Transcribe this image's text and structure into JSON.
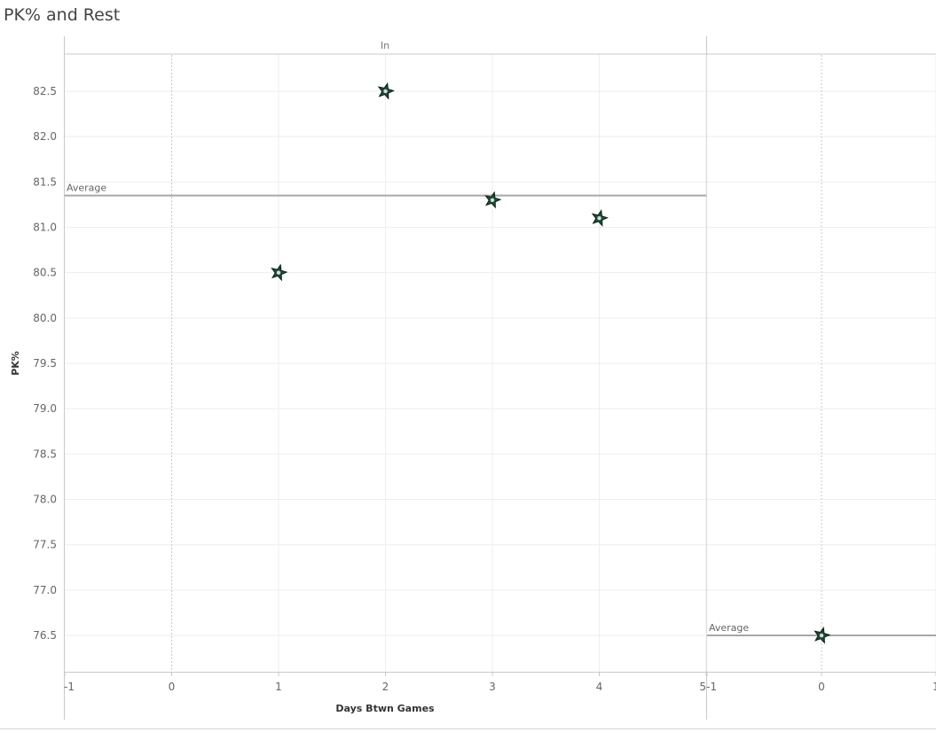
{
  "title": "PK% and Rest",
  "chart_data": {
    "type": "scatter",
    "panel_header": "In",
    "xlabel": "Days Btwn Games",
    "ylabel": "PK%",
    "ylim": [
      76.1,
      82.9
    ],
    "y_ticks": [
      "76.5",
      "77.0",
      "77.5",
      "78.0",
      "78.5",
      "79.0",
      "79.5",
      "80.0",
      "80.5",
      "81.0",
      "81.5",
      "82.0",
      "82.5"
    ],
    "panels": [
      {
        "x_ticks": [
          "-1",
          "0",
          "1",
          "2",
          "3",
          "4",
          "5"
        ],
        "xlim": [
          -1,
          5
        ],
        "points": [
          {
            "x": 1,
            "y": 80.5
          },
          {
            "x": 2,
            "y": 82.5
          },
          {
            "x": 3,
            "y": 81.3
          },
          {
            "x": 4,
            "y": 81.1
          }
        ],
        "average": {
          "label": "Average",
          "value": 81.35
        }
      },
      {
        "x_ticks": [
          "-1",
          "0",
          "1"
        ],
        "xlim": [
          -1,
          1
        ],
        "points": [
          {
            "x": 0,
            "y": 76.5
          }
        ],
        "average": {
          "label": "Average",
          "value": 76.5
        }
      }
    ],
    "marker": "star",
    "colors": {
      "marker_fill": "#1f4c39",
      "marker_stroke": "#0b1f16",
      "average_line": "#a8a8a8",
      "grid": "#eeeeee",
      "zero_line": "#c8c8c8"
    }
  }
}
